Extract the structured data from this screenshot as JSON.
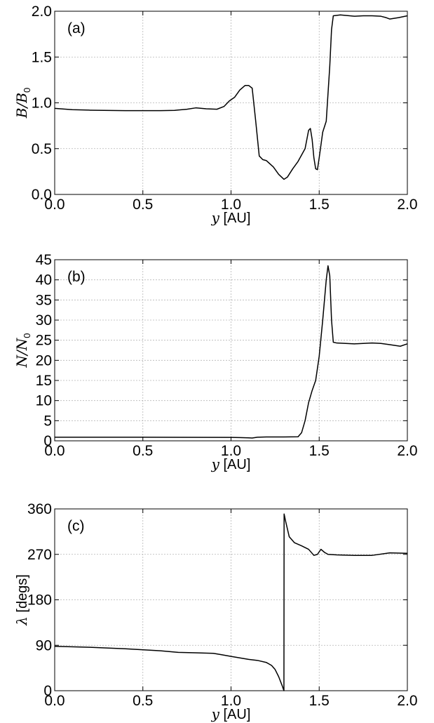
{
  "chart_data": [
    {
      "type": "line",
      "panel_label": "(a)",
      "xlabel_var": "y",
      "xlabel_unit": "[AU]",
      "ylabel_num": "B",
      "ylabel_den": "B",
      "ylabel_den_sub": "0",
      "xlim": [
        0.0,
        2.0
      ],
      "ylim": [
        0.0,
        2.0
      ],
      "xticks": [
        "0.0",
        "0.5",
        "1.0",
        "1.5",
        "2.0"
      ],
      "yticks": [
        "0.0",
        "0.5",
        "1.0",
        "1.5",
        "2.0"
      ],
      "grid": true,
      "series": [
        {
          "color": "#000000",
          "x": [
            0.0,
            0.1,
            0.2,
            0.4,
            0.6,
            0.68,
            0.75,
            0.8,
            0.86,
            0.92,
            0.96,
            0.99,
            1.02,
            1.05,
            1.08,
            1.1,
            1.12,
            1.14,
            1.16,
            1.18,
            1.2,
            1.24,
            1.27,
            1.3,
            1.32,
            1.35,
            1.38,
            1.42,
            1.44,
            1.45,
            1.46,
            1.47,
            1.48,
            1.49,
            1.5,
            1.52,
            1.54,
            1.56,
            1.57,
            1.58,
            1.62,
            1.7,
            1.75,
            1.8,
            1.85,
            1.88,
            1.9,
            1.95,
            2.0
          ],
          "y": [
            0.94,
            0.925,
            0.92,
            0.915,
            0.915,
            0.918,
            0.93,
            0.945,
            0.935,
            0.93,
            0.96,
            1.02,
            1.06,
            1.14,
            1.19,
            1.19,
            1.16,
            0.8,
            0.42,
            0.38,
            0.37,
            0.3,
            0.22,
            0.165,
            0.19,
            0.28,
            0.36,
            0.5,
            0.7,
            0.72,
            0.6,
            0.4,
            0.28,
            0.27,
            0.4,
            0.68,
            0.8,
            1.4,
            1.8,
            1.95,
            1.96,
            1.945,
            1.95,
            1.95,
            1.945,
            1.93,
            1.915,
            1.93,
            1.95
          ]
        }
      ]
    },
    {
      "type": "line",
      "panel_label": "(b)",
      "xlabel_var": "y",
      "xlabel_unit": "[AU]",
      "ylabel_num": "N",
      "ylabel_den": "N",
      "ylabel_den_sub": "0",
      "xlim": [
        0.0,
        2.0
      ],
      "ylim": [
        0,
        45
      ],
      "xticks": [
        "0.0",
        "0.5",
        "1.0",
        "1.5",
        "2.0"
      ],
      "yticks": [
        "0",
        "5",
        "10",
        "15",
        "20",
        "25",
        "30",
        "35",
        "40",
        "45"
      ],
      "grid": true,
      "series": [
        {
          "color": "#000000",
          "x": [
            0.0,
            0.5,
            1.0,
            1.05,
            1.1,
            1.12,
            1.15,
            1.2,
            1.3,
            1.38,
            1.4,
            1.42,
            1.44,
            1.46,
            1.48,
            1.5,
            1.52,
            1.54,
            1.55,
            1.56,
            1.57,
            1.58,
            1.6,
            1.7,
            1.8,
            1.85,
            1.9,
            1.93,
            1.96,
            2.0
          ],
          "y": [
            0.9,
            0.9,
            0.85,
            0.8,
            0.75,
            0.7,
            0.9,
            0.95,
            0.95,
            1.0,
            2.0,
            5.0,
            9.5,
            12.5,
            15.0,
            21.0,
            30.0,
            40.0,
            43.5,
            41.0,
            30.0,
            24.5,
            24.3,
            24.1,
            24.3,
            24.2,
            23.9,
            23.7,
            23.5,
            24.1
          ]
        }
      ]
    },
    {
      "type": "line",
      "panel_label": "(c)",
      "xlabel_var": "y",
      "xlabel_unit": "[AU]",
      "ylabel_greek": "λ",
      "ylabel_unit": "[degs]",
      "xlim": [
        0.0,
        2.0
      ],
      "ylim": [
        0,
        360
      ],
      "xticks": [
        "0.0",
        "0.5",
        "1.0",
        "1.5",
        "2.0"
      ],
      "yticks": [
        "0",
        "90",
        "180",
        "270",
        "360"
      ],
      "grid": true,
      "series": [
        {
          "color": "#000000",
          "x": [
            0.0,
            0.2,
            0.4,
            0.6,
            0.7,
            0.8,
            0.9,
            0.95,
            1.0,
            1.05,
            1.1,
            1.15,
            1.2,
            1.23,
            1.25,
            1.27,
            1.29,
            1.3,
            1.301,
            1.31,
            1.33,
            1.36,
            1.4,
            1.44,
            1.47,
            1.49,
            1.51,
            1.53,
            1.55,
            1.6,
            1.7,
            1.8,
            1.9,
            2.0
          ],
          "y": [
            88,
            86,
            83,
            79,
            76,
            75,
            74,
            71,
            68,
            65,
            62,
            60,
            56,
            50,
            42,
            28,
            10,
            0,
            350,
            335,
            305,
            293,
            287,
            280,
            268,
            270,
            280,
            274,
            270,
            269,
            268,
            268,
            273,
            272
          ]
        }
      ]
    }
  ]
}
